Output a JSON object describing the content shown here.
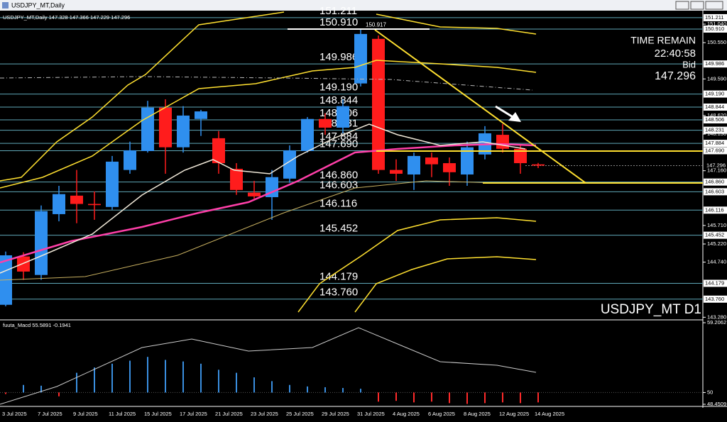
{
  "window": {
    "title": "USDJPY_MT,Daily"
  },
  "chart_data": [
    {
      "type": "candlestick",
      "title": "USDJPY_MT,Daily 147.328 147.366 147.229 147.296",
      "time_remain_label": "TIME REMAIN",
      "time_remain": "22:40:58",
      "bid_label": "Bid",
      "bid": "147.296",
      "symbol_label": "USDJPY_MT D1",
      "high_label": {
        "value": 150.917,
        "label": "150.917"
      },
      "current_price": {
        "value": 147.296,
        "label": "147.296"
      },
      "categories": [
        "3 Jul 2025",
        null,
        "7 Jul 2025",
        null,
        "9 Jul 2025",
        null,
        "11 Jul 2025",
        null,
        "15 Jul 2025",
        null,
        "17 Jul 2025",
        null,
        "21 Jul 2025",
        null,
        "23 Jul 2025",
        null,
        "25 Jul 2025",
        null,
        "29 Jul 2025",
        null,
        "31 Jul 2025",
        null,
        "4 Aug 2025",
        null,
        "6 Aug 2025",
        null,
        "8 Aug 2025",
        null,
        "12 Aug 2025",
        null,
        "14 Aug 2025"
      ],
      "open": [
        143.61,
        144.89,
        144.4,
        146.01,
        146.5,
        146.28,
        146.2,
        147.18,
        147.68,
        148.83,
        147.78,
        148.53,
        148.02,
        147.21,
        146.58,
        146.46,
        146.95,
        147.68,
        148.53,
        148.3,
        149.47,
        150.65,
        147.18,
        147.06,
        147.51,
        147.36,
        147.06,
        147.59,
        148.11,
        147.74,
        147.328
      ],
      "high": [
        145.02,
        145.0,
        146.24,
        146.76,
        147.18,
        146.61,
        147.55,
        147.93,
        149.01,
        149.05,
        148.87,
        148.77,
        148.21,
        147.36,
        146.89,
        147.18,
        147.83,
        148.58,
        148.68,
        149.05,
        150.917,
        150.74,
        147.46,
        147.64,
        147.64,
        147.51,
        147.93,
        148.34,
        148.4,
        147.83,
        147.366
      ],
      "low": [
        143.57,
        144.27,
        144.27,
        145.82,
        145.77,
        145.86,
        146.13,
        147.08,
        147.64,
        147.08,
        147.64,
        148.08,
        147.08,
        146.52,
        146.42,
        145.86,
        146.84,
        147.64,
        148.11,
        148.15,
        149.39,
        147.08,
        146.89,
        146.65,
        146.99,
        146.76,
        146.76,
        147.46,
        147.64,
        147.08,
        147.229
      ],
      "close": [
        144.92,
        144.49,
        146.09,
        146.54,
        146.28,
        146.25,
        147.4,
        147.7,
        148.83,
        147.78,
        148.62,
        148.73,
        147.36,
        146.65,
        146.48,
        146.99,
        147.7,
        148.53,
        148.3,
        148.87,
        150.78,
        147.18,
        147.08,
        147.55,
        147.33,
        147.12,
        147.78,
        148.15,
        147.74,
        147.36,
        147.296
      ],
      "up_color": "#2f8fef",
      "down_color": "#ff1c1c",
      "ylim": [
        143.23,
        151.36
      ],
      "yticks": [
        {
          "value": 151.04,
          "label": "151.040"
        },
        {
          "value": 150.55,
          "label": "150.550"
        },
        {
          "value": 149.59,
          "label": "149.590"
        },
        {
          "value": 148.62,
          "label": "148.620"
        },
        {
          "value": 148.13,
          "label": "148.130"
        },
        {
          "value": 147.16,
          "label": "147.160"
        },
        {
          "value": 145.71,
          "label": "145.710"
        },
        {
          "value": 145.22,
          "label": "145.220"
        },
        {
          "value": 144.74,
          "label": "144.740"
        },
        {
          "value": 143.28,
          "label": "143.280"
        }
      ],
      "levels": [
        {
          "value": 151.211,
          "label": "151.211"
        },
        {
          "value": 150.91,
          "label": "150.910"
        },
        {
          "value": 149.986,
          "label": "149.986"
        },
        {
          "value": 149.19,
          "label": "149.190"
        },
        {
          "value": 148.844,
          "label": "148.844"
        },
        {
          "value": 148.506,
          "label": "148.506"
        },
        {
          "value": 148.231,
          "label": "148.231"
        },
        {
          "value": 147.884,
          "label": "147.884"
        },
        {
          "value": 147.69,
          "label": "147.690"
        },
        {
          "value": 146.86,
          "label": "146.860"
        },
        {
          "value": 146.603,
          "label": "146.603"
        },
        {
          "value": 146.116,
          "label": "146.116"
        },
        {
          "value": 145.452,
          "label": "145.452"
        },
        {
          "value": 144.179,
          "label": "144.179"
        },
        {
          "value": 143.76,
          "label": "143.760"
        }
      ],
      "level_color": "#5fa8b8"
    },
    {
      "type": "bar",
      "title": "fuuta_Macd 55.5891 -0.1941",
      "values": [
        49.8,
        51.0,
        50.9,
        49.5,
        52.6,
        53.3,
        53.8,
        54.2,
        54.7,
        54.3,
        54.1,
        53.8,
        53.0,
        52.6,
        52.0,
        51.5,
        51.0,
        50.8,
        50.7,
        50.6,
        50.5,
        48.8,
        48.9,
        48.7,
        48.8,
        48.6,
        48.5,
        48.6,
        48.7,
        48.6,
        48.7
      ],
      "base": 50,
      "ylim": [
        48.4509,
        59.2062
      ],
      "yticks": [
        59.2062,
        50,
        48.4509
      ]
    }
  ]
}
